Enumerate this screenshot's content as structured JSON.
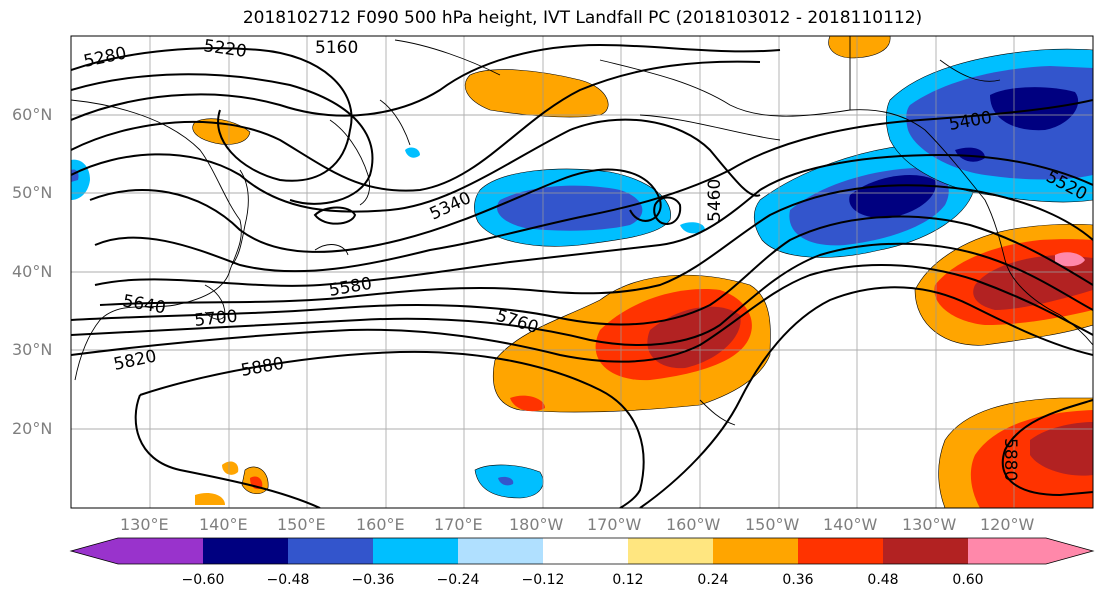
{
  "title": "2018102712 F090 500 hPa height, IVT Landfall PC (2018103012 - 2018110112)",
  "lat_labels": [
    "60°N",
    "50°N",
    "40°N",
    "30°N",
    "20°N"
  ],
  "lon_labels": [
    "130°E",
    "140°E",
    "150°E",
    "160°E",
    "170°E",
    "180°W",
    "170°W",
    "160°W",
    "150°W",
    "140°W",
    "130°W",
    "120°W"
  ],
  "contour_labels": [
    "5160",
    "5220",
    "5280",
    "5340",
    "5400",
    "5460",
    "5520",
    "5580",
    "5640",
    "5700",
    "5760",
    "5820",
    "5880",
    "5880"
  ],
  "colorbar": {
    "ticks": [
      "−0.60",
      "−0.48",
      "−0.36",
      "−0.24",
      "−0.12",
      "0.12",
      "0.24",
      "0.36",
      "0.48",
      "0.60"
    ],
    "colors": [
      "#9933cc",
      "#000080",
      "#3355cc",
      "#00bfff",
      "#b0e0ff",
      "#ffffff",
      "#ffe680",
      "#ffa500",
      "#ff3300",
      "#b22222",
      "#ff88aa"
    ]
  }
}
